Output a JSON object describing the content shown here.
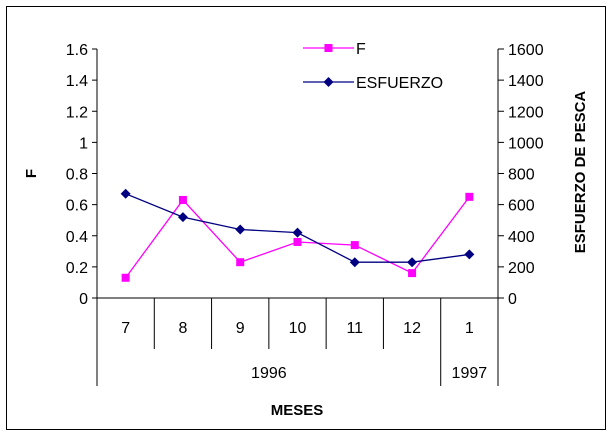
{
  "chart_data": {
    "type": "line",
    "x": [
      "7",
      "8",
      "9",
      "10",
      "11",
      "12",
      "1"
    ],
    "year_groups": [
      {
        "label": "1996",
        "span": 6
      },
      {
        "label": "1997",
        "span": 1
      }
    ],
    "xlabel": "MESES",
    "ylabel_left": "F",
    "ylabel_right": "ESFUERZO DE PESCA",
    "ylim_left": [
      0,
      1.6
    ],
    "ylim_right": [
      0,
      1600
    ],
    "yticks_left": [
      "0",
      "0.2",
      "0.4",
      "0.6",
      "0.8",
      "1",
      "1.2",
      "1.4",
      "1.6"
    ],
    "yticks_right": [
      "0",
      "200",
      "400",
      "600",
      "800",
      "1000",
      "1200",
      "1400",
      "1600"
    ],
    "grid": false,
    "legend_position": "top-right",
    "series": [
      {
        "name": "F",
        "axis": "left",
        "color": "#ff00ff",
        "marker": "square",
        "values": [
          0.13,
          0.63,
          0.23,
          0.36,
          0.34,
          0.16,
          0.65
        ]
      },
      {
        "name": "ESFUERZO",
        "axis": "right",
        "color": "#000080",
        "marker": "diamond",
        "values": [
          670,
          520,
          440,
          420,
          230,
          230,
          280
        ]
      }
    ]
  }
}
